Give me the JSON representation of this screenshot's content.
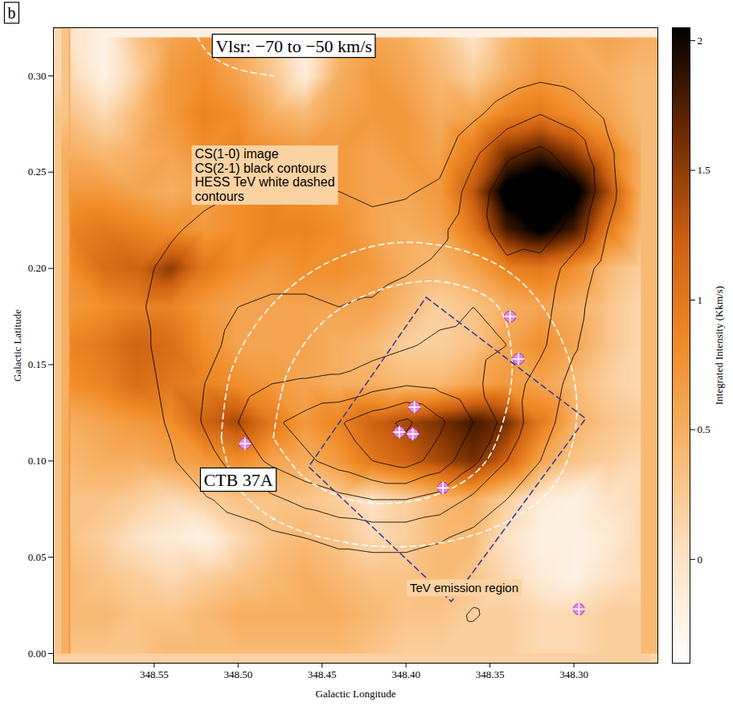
{
  "chart_data": {
    "type": "heatmap",
    "panel": "b",
    "title": "Vlsr: −70 to −50 km/s",
    "notes": [
      "CS(1-0) image",
      "CS(2-1) black contours",
      "HESS TeV white dashed",
      "contours"
    ],
    "xlabel": "Galactic Longitude",
    "ylabel": "Galactic Latitude",
    "xlim": [
      348.61,
      348.25
    ],
    "ylim": [
      -0.005,
      0.325
    ],
    "xticks": [
      348.55,
      {
        "value": 348.5,
        "label": "348.50"
      },
      348.45,
      {
        "value": 348.4,
        "label": "348.40"
      },
      348.35,
      {
        "value": 348.3,
        "label": "348.30"
      }
    ],
    "yticks": [
      {
        "value": 0,
        "label": "0.00"
      },
      0.05,
      {
        "value": 0.1,
        "label": "0.10"
      },
      0.15,
      {
        "value": 0.2,
        "label": "0.20"
      },
      0.25,
      {
        "value": 0.3,
        "label": "0.30"
      }
    ],
    "l": [
      348.6,
      348.58,
      348.56,
      348.54,
      348.52,
      348.5,
      348.48,
      348.46,
      348.44,
      348.42,
      348.4,
      348.38,
      348.36,
      348.34,
      348.32,
      348.3,
      348.28,
      348.26
    ],
    "b": [
      0.32,
      0.3,
      0.28,
      0.26,
      0.24,
      0.22,
      0.2,
      0.18,
      0.16,
      0.14,
      0.12,
      0.1,
      0.08,
      0.06,
      0.04,
      0.02,
      0
    ],
    "cells": [
      [
        0.0,
        -0.2,
        0.3,
        0.6,
        0.7,
        0.5,
        0.2,
        -0.2,
        0.4,
        0.6,
        0.5,
        0.3,
        0.0,
        0.4,
        0.6,
        0.5,
        0.6,
        0.5
      ],
      [
        0.1,
        -0.2,
        0.2,
        0.7,
        0.8,
        0.6,
        0.3,
        -0.1,
        0.5,
        0.7,
        0.6,
        0.4,
        0.2,
        0.5,
        0.7,
        0.6,
        0.5,
        0.4
      ],
      [
        0.3,
        0.1,
        0.4,
        0.7,
        0.9,
        0.8,
        0.5,
        0.4,
        0.6,
        0.7,
        0.7,
        0.5,
        0.6,
        0.9,
        1.0,
        0.8,
        0.6,
        0.4
      ],
      [
        0.5,
        0.4,
        0.5,
        0.6,
        0.8,
        0.9,
        0.8,
        0.7,
        0.7,
        0.6,
        0.7,
        0.6,
        1.0,
        1.6,
        1.8,
        1.5,
        1.0,
        0.5
      ],
      [
        0.7,
        0.7,
        0.6,
        0.5,
        0.6,
        0.8,
        0.9,
        0.8,
        0.7,
        0.6,
        0.6,
        0.7,
        1.3,
        2.2,
        2.4,
        2.2,
        1.4,
        0.5
      ],
      [
        0.9,
        1.0,
        0.9,
        0.8,
        0.7,
        0.8,
        0.9,
        0.9,
        0.8,
        0.6,
        0.5,
        0.6,
        1.0,
        1.8,
        2.1,
        1.8,
        1.0,
        0.4
      ],
      [
        0.8,
        1.1,
        1.2,
        1.5,
        1.0,
        0.8,
        0.7,
        0.8,
        0.8,
        0.7,
        0.5,
        0.4,
        0.6,
        0.9,
        1.0,
        0.8,
        0.4,
        0.2
      ],
      [
        0.7,
        0.8,
        0.9,
        0.9,
        0.7,
        0.6,
        0.6,
        0.6,
        0.6,
        0.6,
        0.4,
        0.2,
        0.3,
        0.5,
        0.6,
        0.5,
        0.3,
        0.1
      ],
      [
        0.9,
        1.0,
        1.2,
        1.1,
        0.8,
        0.6,
        0.6,
        0.6,
        0.5,
        0.4,
        0.2,
        0.2,
        0.3,
        0.6,
        0.8,
        0.6,
        0.3,
        0.1
      ],
      [
        0.8,
        0.9,
        1.1,
        1.0,
        0.9,
        0.8,
        0.7,
        0.6,
        0.5,
        0.5,
        0.4,
        0.4,
        0.6,
        0.7,
        0.6,
        0.4,
        0.2,
        0.1
      ],
      [
        0.5,
        0.6,
        0.7,
        0.8,
        1.2,
        1.4,
        1.0,
        0.7,
        0.9,
        1.2,
        1.4,
        1.6,
        1.8,
        1.6,
        1.0,
        0.5,
        0.3,
        0.2
      ],
      [
        0.4,
        0.5,
        0.5,
        0.6,
        0.7,
        0.8,
        0.6,
        0.5,
        0.7,
        1.0,
        1.2,
        1.4,
        1.6,
        1.2,
        0.6,
        0.3,
        0.2,
        0.1
      ],
      [
        0.3,
        0.3,
        0.2,
        0.1,
        0.2,
        0.3,
        0.3,
        0.3,
        0.2,
        0.0,
        0.2,
        0.4,
        0.5,
        0.2,
        -0.1,
        -0.2,
        0.0,
        0.1
      ],
      [
        0.3,
        0.2,
        0.0,
        -0.1,
        -0.2,
        0.1,
        0.3,
        0.4,
        0.3,
        0.1,
        0.2,
        0.4,
        0.4,
        0.0,
        -0.2,
        -0.2,
        -0.1,
        0.1
      ],
      [
        0.4,
        0.3,
        0.2,
        0.1,
        0.2,
        0.3,
        0.4,
        0.5,
        0.4,
        0.3,
        0.3,
        0.4,
        0.3,
        0.1,
        -0.1,
        -0.2,
        0.0,
        0.1
      ],
      [
        0.4,
        0.4,
        0.3,
        0.3,
        0.4,
        0.5,
        0.5,
        0.5,
        0.5,
        0.4,
        0.3,
        0.3,
        0.2,
        0.2,
        0.1,
        0.1,
        0.2,
        0.2
      ],
      [
        0.3,
        0.3,
        0.3,
        0.4,
        0.4,
        0.4,
        0.4,
        0.4,
        0.4,
        0.3,
        0.2,
        0.2,
        0.2,
        0.2,
        0.1,
        0.1,
        0.2,
        0.2
      ]
    ],
    "colorbar": {
      "label": "Integrated Intensity (Kkm/s)",
      "range": [
        -0.4,
        2.05
      ],
      "ticks": [
        0,
        0.5,
        1,
        1.5,
        2
      ]
    },
    "contour_color": "#000000",
    "contour_levels": [
      1,
      2,
      3,
      4,
      5,
      6
    ],
    "contour_cells": [
      [
        0,
        0,
        0,
        0,
        0,
        0,
        0,
        0,
        0,
        0,
        0,
        0,
        0,
        0,
        0,
        0,
        0,
        0
      ],
      [
        0,
        0,
        0,
        0,
        0,
        0,
        0,
        0,
        0,
        0,
        0,
        0,
        0,
        0.5,
        0.8,
        0.6,
        0.3,
        0
      ],
      [
        0,
        0,
        0,
        0,
        0,
        0,
        0,
        0,
        0,
        0,
        0,
        0,
        0.8,
        1.5,
        2,
        1.6,
        0.8,
        0
      ],
      [
        0,
        0,
        0,
        0,
        0.3,
        0.5,
        0.5,
        0.5,
        0.4,
        0.3,
        0.3,
        0.6,
        1.8,
        2.8,
        3.2,
        2.6,
        1.2,
        0.2
      ],
      [
        0,
        0,
        0,
        0.5,
        0.8,
        1,
        1.1,
        1.1,
        1,
        0.8,
        0.9,
        1.2,
        2.4,
        3.6,
        4.2,
        3.2,
        1.3,
        0.2
      ],
      [
        0,
        0,
        0.4,
        0.9,
        1.2,
        1.4,
        1.5,
        1.5,
        1.4,
        1.3,
        1.4,
        1.8,
        2.6,
        3.4,
        3.6,
        2.6,
        1,
        0.1
      ],
      [
        0,
        0.3,
        0.8,
        1.2,
        1.5,
        1.7,
        1.8,
        1.8,
        1.7,
        1.7,
        1.9,
        2.2,
        2.6,
        2.8,
        2.6,
        1.6,
        0.6,
        0
      ],
      [
        0,
        0.3,
        0.9,
        1.3,
        1.7,
        2,
        2.1,
        2.1,
        2,
        2.1,
        2.4,
        2.7,
        3,
        2.9,
        2.4,
        1.3,
        0.4,
        0
      ],
      [
        0,
        0.3,
        0.8,
        1.3,
        1.8,
        2.2,
        2.4,
        2.4,
        2.4,
        2.6,
        2.9,
        3.2,
        3.3,
        3,
        2.2,
        1.1,
        0.3,
        0
      ],
      [
        0,
        0.2,
        0.7,
        1.2,
        2,
        2.6,
        3,
        3.1,
        3.2,
        3.6,
        3.9,
        3.7,
        3.2,
        2.5,
        1.6,
        0.7,
        0.2,
        0
      ],
      [
        0,
        0.1,
        0.6,
        1.1,
        2.1,
        3,
        3.8,
        4.4,
        4.9,
        5.6,
        6.2,
        5.2,
        4,
        2.6,
        1.4,
        0.5,
        0.1,
        0
      ],
      [
        0,
        0,
        0.4,
        0.9,
        1.6,
        2.4,
        3.2,
        3.8,
        4.4,
        5,
        5.4,
        4.6,
        3.2,
        2,
        1,
        0.3,
        0,
        0
      ],
      [
        0,
        0,
        0.2,
        0.5,
        0.9,
        1.3,
        1.8,
        2.3,
        2.7,
        3,
        3,
        2.6,
        1.8,
        1,
        0.4,
        0.1,
        0,
        0
      ],
      [
        0,
        0,
        0,
        0.2,
        0.4,
        0.6,
        0.8,
        1,
        1.2,
        1.3,
        1.3,
        1.1,
        0.7,
        0.3,
        0.1,
        0,
        0,
        0
      ],
      [
        0,
        0,
        0,
        0,
        0.1,
        0.2,
        0.3,
        0.4,
        0.5,
        0.5,
        0.5,
        0.4,
        0.2,
        0,
        0,
        0,
        0,
        0
      ],
      [
        0,
        0,
        0,
        0,
        0,
        0,
        0,
        0,
        0,
        0,
        0,
        0.2,
        1.2,
        0.2,
        0,
        0,
        0,
        0
      ],
      [
        0,
        0,
        0,
        0,
        0,
        0,
        0,
        0,
        0,
        0,
        0,
        0,
        0,
        0,
        0,
        0,
        0,
        0
      ]
    ],
    "tev_contours": {
      "color": "#ffffff",
      "line_style": "dashed",
      "paths": [
        {
          "l": [
            348.51,
            348.504,
            348.483,
            348.451,
            348.41,
            348.369,
            348.337,
            348.314,
            348.3,
            348.3,
            348.314,
            348.346,
            348.392,
            348.438,
            348.479,
            348.502,
            348.51
          ],
          "b": [
            0.112,
            0.147,
            0.178,
            0.201,
            0.213,
            0.21,
            0.197,
            0.174,
            0.143,
            0.112,
            0.085,
            0.066,
            0.056,
            0.058,
            0.07,
            0.089,
            0.112
          ]
        },
        {
          "l": [
            348.479,
            348.47,
            348.447,
            348.415,
            348.378,
            348.346,
            348.337,
            348.341,
            348.355,
            348.387,
            348.428,
            348.46,
            348.479
          ],
          "b": [
            0.112,
            0.147,
            0.174,
            0.189,
            0.193,
            0.181,
            0.154,
            0.124,
            0.097,
            0.081,
            0.079,
            0.091,
            0.112
          ]
        },
        {
          "l": [
            348.527,
            348.518,
            348.502,
            348.479
          ],
          "b": [
            0.325,
            0.312,
            0.304,
            0.3
          ]
        }
      ]
    },
    "region": {
      "label": "TeV emission region",
      "color": "#3a3a9c",
      "line_style": "dashed",
      "l": [
        348.388,
        348.293,
        348.373,
        348.458,
        348.388
      ],
      "b": [
        0.185,
        0.122,
        0.027,
        0.097,
        0.185
      ]
    },
    "object_label": "CTB 37A",
    "sources": {
      "color": "#e08ae0",
      "marker": "crossed circle",
      "l": [
        348.338,
        348.333,
        348.395,
        348.404,
        348.396,
        348.378,
        348.496,
        348.297
      ],
      "b": [
        0.175,
        0.153,
        0.128,
        0.115,
        0.114,
        0.086,
        0.109,
        0.023
      ]
    }
  }
}
